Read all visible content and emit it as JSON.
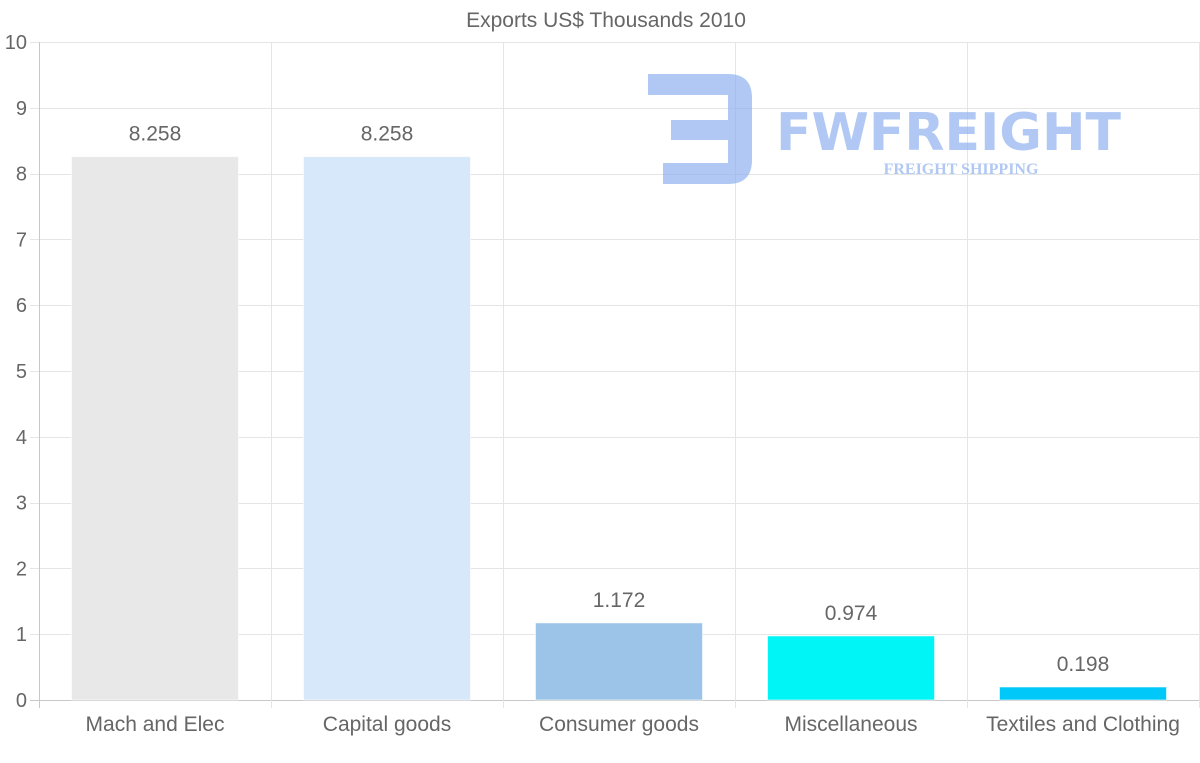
{
  "chart_data": {
    "type": "bar",
    "title": "Exports US$ Thousands 2010",
    "categories": [
      "Mach and Elec",
      "Capital goods",
      "Consumer goods",
      "Miscellaneous",
      "Textiles and Clothing"
    ],
    "values": [
      8.258,
      8.258,
      1.172,
      0.974,
      0.198
    ],
    "value_labels": [
      "8.258",
      "8.258",
      "1.172",
      "0.974",
      "0.198"
    ],
    "bar_colors": [
      "#e8e8e8",
      "#d6e8f9",
      "#9bc4e8",
      "#00f5f7",
      "#00c8f8"
    ],
    "ylim": [
      0,
      10
    ],
    "yticks": [
      "0",
      "1",
      "2",
      "3",
      "4",
      "5",
      "6",
      "7",
      "8",
      "9",
      "10"
    ],
    "xlabel": "",
    "ylabel": "",
    "grid": true,
    "legend": "none"
  },
  "watermark": {
    "brand": "FWFREIGHT",
    "tagline": "FREIGHT SHIPPING",
    "color": "#8fb1ee"
  }
}
